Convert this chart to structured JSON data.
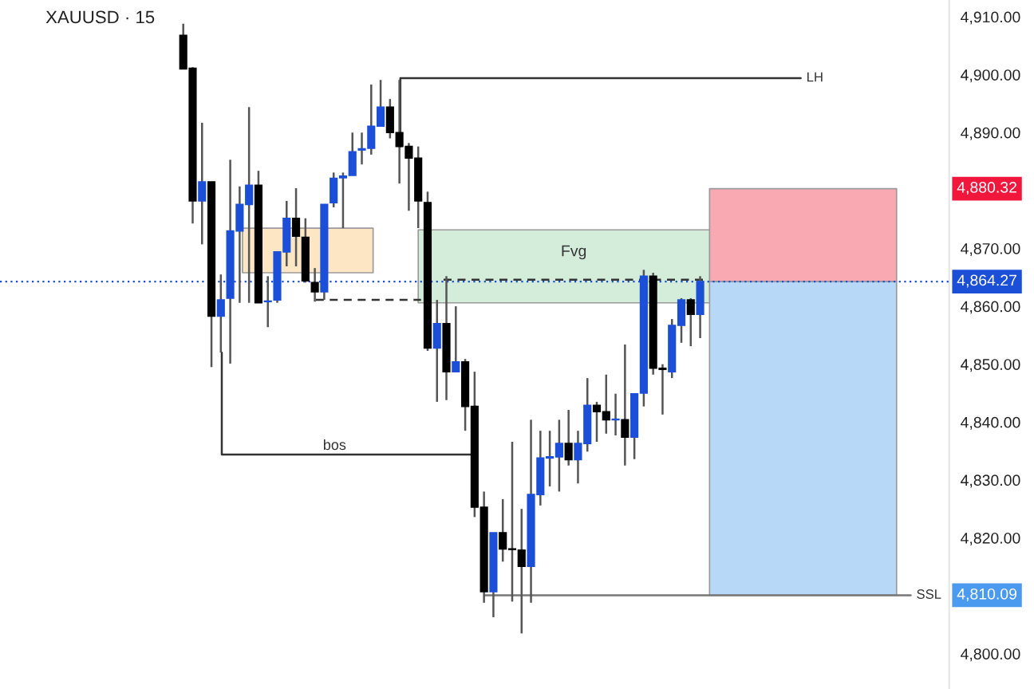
{
  "chart_data": {
    "type": "candlestick",
    "title": "XAUUSD · 15",
    "categories": [
      null,
      null,
      null,
      null,
      null,
      null,
      null,
      null,
      null,
      null,
      null,
      null,
      null,
      null,
      null,
      null,
      null,
      null,
      null,
      null,
      null,
      null,
      null,
      null,
      null,
      null,
      null,
      null,
      null,
      null,
      null,
      null,
      null,
      null,
      null,
      null,
      null,
      null,
      null,
      null,
      null,
      null,
      null,
      null,
      null,
      null,
      null,
      null,
      null,
      null,
      null,
      null,
      null,
      null,
      null,
      null,
      null,
      null,
      null,
      null,
      null,
      null,
      null,
      null,
      null,
      null,
      null,
      null,
      null,
      null,
      null,
      null,
      null,
      null,
      null,
      null,
      null,
      null,
      null,
      null,
      null,
      null,
      null,
      null,
      null,
      null,
      null,
      null,
      null,
      null,
      null,
      null,
      null,
      null,
      null,
      null,
      null,
      null,
      null,
      null,
      null
    ],
    "ohlc": [
      null,
      null,
      null,
      null,
      null,
      null,
      null,
      null,
      null,
      null,
      null,
      null,
      null,
      null,
      null,
      null,
      null,
      null,
      null,
      [
        4906.8,
        4908.8,
        4901.0,
        4901.0
      ],
      [
        4901.1,
        4901.3,
        4874.3,
        4878.2
      ],
      [
        4878.2,
        4891.7,
        4870.7,
        4881.5
      ],
      [
        4881.5,
        4881.5,
        4849.5,
        4858.3
      ],
      [
        4858.3,
        4865.5,
        4852.0,
        4861.1
      ],
      [
        4861.4,
        4885.3,
        4850.1,
        4873.0
      ],
      [
        4873.0,
        4880.7,
        4860.6,
        4877.6
      ],
      [
        4877.6,
        4894.4,
        4860.6,
        4880.9
      ],
      [
        4880.9,
        4883.4,
        4860.6,
        4860.6
      ],
      [
        4860.8,
        4865.2,
        4856.4,
        4860.9
      ],
      [
        4861.1,
        4869.4,
        4860.6,
        4869.4
      ],
      [
        4869.4,
        4878.2,
        4866.9,
        4875.2
      ],
      [
        4875.2,
        4880.4,
        4866.9,
        4872.1
      ],
      [
        4871.9,
        4875.2,
        4864.1,
        4864.4
      ],
      [
        4864.1,
        4866.6,
        4860.8,
        4862.5
      ],
      [
        4862.5,
        4877.6,
        4861.1,
        4877.6
      ],
      [
        4877.9,
        4883.1,
        4877.1,
        4882.1
      ],
      [
        4882.2,
        4883.1,
        4873.5,
        4882.5
      ],
      [
        4882.6,
        4890.0,
        4882.6,
        4886.7
      ],
      [
        4887.0,
        4890.0,
        4884.5,
        4887.2
      ],
      [
        4887.3,
        4898.3,
        4886.2,
        4891.1
      ],
      [
        4891.1,
        4899.1,
        4891.1,
        4894.4
      ],
      [
        4894.4,
        4895.8,
        4889.0,
        4890.0
      ],
      [
        4890.0,
        4899.1,
        4881.2,
        4887.6
      ],
      [
        4887.6,
        4888.2,
        4876.5,
        4885.6
      ],
      [
        4885.6,
        4887.6,
        4873.5,
        4878.2
      ],
      [
        4877.9,
        4879.8,
        4852.3,
        4852.8
      ],
      [
        4852.8,
        4861.1,
        4843.5,
        4857.0
      ],
      [
        4857.0,
        4865.2,
        4843.8,
        4848.7
      ],
      [
        4848.7,
        4860.0,
        4848.7,
        4850.4
      ],
      [
        4850.4,
        4850.9,
        4838.5,
        4842.7
      ],
      [
        4842.7,
        4848.7,
        4823.6,
        4825.3
      ],
      [
        4825.3,
        4828.0,
        4808.8,
        4810.7
      ],
      [
        4810.7,
        4820.9,
        4806.3,
        4820.9
      ],
      [
        4820.9,
        4826.7,
        4815.9,
        4818.1
      ],
      [
        4818.1,
        4836.6,
        4809.0,
        4818.0
      ],
      [
        4817.9,
        4825.0,
        4803.5,
        4815.1
      ],
      [
        4815.1,
        4840.4,
        4808.8,
        4827.5
      ],
      [
        4827.5,
        4838.5,
        4825.6,
        4833.8
      ],
      [
        4833.8,
        4838.5,
        4828.9,
        4834.0
      ],
      [
        4834.0,
        4840.4,
        4828.0,
        4836.3
      ],
      [
        4836.3,
        4842.1,
        4832.5,
        4833.5
      ],
      [
        4833.5,
        4838.5,
        4829.4,
        4836.3
      ],
      [
        4836.3,
        4847.6,
        4834.9,
        4842.9
      ],
      [
        4842.9,
        4843.5,
        4836.6,
        4841.8
      ],
      [
        4841.8,
        4848.2,
        4838.0,
        4840.4
      ],
      [
        4840.4,
        4844.9,
        4837.7,
        4840.5
      ],
      [
        4840.4,
        4853.4,
        4832.5,
        4837.4
      ],
      [
        4837.4,
        4845.0,
        4833.6,
        4844.9
      ],
      [
        4845.0,
        4866.3,
        4842.7,
        4865.2
      ],
      [
        4865.2,
        4865.8,
        4848.2,
        4849.3
      ],
      [
        4849.3,
        4850.0,
        4841.3,
        4849.1
      ],
      [
        4848.7,
        4857.8,
        4847.6,
        4856.7
      ],
      [
        4856.7,
        4861.4,
        4853.7,
        4861.1
      ],
      [
        4861.1,
        4861.4,
        4853.1,
        4858.6
      ],
      [
        4858.6,
        4865.2,
        4854.5,
        4864.27
      ],
      null,
      null,
      null,
      null,
      null,
      null,
      null,
      null,
      null,
      null,
      null,
      null,
      null,
      null,
      null,
      null,
      null,
      null,
      null,
      null,
      null,
      null,
      null,
      null,
      null,
      null
    ],
    "colors": [
      null,
      null,
      null,
      null,
      null,
      null,
      null,
      null,
      null,
      null,
      null,
      null,
      null,
      null,
      null,
      null,
      null,
      null,
      null,
      "#000000",
      "#000000",
      "#1c4fd8",
      "#000000",
      "#1c4fd8",
      "#1c4fd8",
      "#1c4fd8",
      "#1c4fd8",
      "#000000",
      "#1c4fd8",
      "#1c4fd8",
      "#1c4fd8",
      "#000000",
      "#000000",
      "#000000",
      "#1c4fd8",
      "#1c4fd8",
      "#1c4fd8",
      "#1c4fd8",
      "#1c4fd8",
      "#1c4fd8",
      "#1c4fd8",
      "#000000",
      "#000000",
      "#000000",
      "#000000",
      "#000000",
      "#1c4fd8",
      "#000000",
      "#1c4fd8",
      "#000000",
      "#000000",
      "#000000",
      "#1c4fd8",
      "#000000",
      "#000000",
      "#000000",
      "#1c4fd8",
      "#1c4fd8",
      "#1c4fd8",
      "#1c4fd8",
      "#000000",
      "#1c4fd8",
      "#1c4fd8",
      "#000000",
      "#000000",
      "#1c4fd8",
      "#000000",
      "#1c4fd8",
      "#1c4fd8",
      "#000000",
      "#000000",
      "#1c4fd8",
      "#1c4fd8",
      "#000000",
      "#1c4fd8",
      null,
      null,
      null,
      null,
      null,
      null,
      null,
      null,
      null,
      null,
      null,
      null,
      null,
      null,
      null,
      null,
      null,
      null,
      null,
      null,
      null,
      null,
      null,
      null,
      null,
      null
    ],
    "bands": [
      {
        "axis": "y",
        "from": 4865.8,
        "to": 4873.5,
        "color": "#fde6c4"
      },
      {
        "axis": "y",
        "from": 4860.6,
        "to": 4873.2,
        "label": "Fvg",
        "color": "#d4ecda"
      },
      {
        "axis": "y",
        "from": 4864.27,
        "to": 4880.32,
        "color": "#f9a9b2"
      },
      {
        "axis": "y",
        "from": 4810.09,
        "to": 4864.27,
        "color": "#b8d8f8"
      }
    ],
    "ref_lines": [
      {
        "axis": "y",
        "value": 4899.4,
        "label": "LH",
        "color": "#333333",
        "line_style": "solid"
      },
      {
        "axis": "y",
        "value": 4834.4,
        "label": "bos",
        "color": "#333333",
        "line_style": "solid"
      },
      {
        "axis": "y",
        "value": 4810.09,
        "label": "SSL",
        "color": "#777777",
        "line_style": "solid"
      },
      {
        "axis": "y",
        "value": 4861.1,
        "color": "#333333",
        "line_style": "dashed"
      },
      {
        "axis": "y",
        "value": 4864.6,
        "color": "#333333",
        "line_style": "dashed"
      },
      {
        "axis": "y",
        "value": 4864.27,
        "color": "#1c4fd8",
        "line_style": "dotted"
      }
    ],
    "annotations": [
      {
        "text": "4,880.32",
        "y": 4880.32
      },
      {
        "text": "4,864.27",
        "y": 4864.27
      },
      {
        "text": "4,810.09",
        "y": 4810.09
      }
    ],
    "ylim": [
      4793.9,
      4912.9
    ],
    "yticks": [
      {
        "value": 4800,
        "label": "4,800.00"
      },
      {
        "value": 4820,
        "label": "4,820.00"
      },
      {
        "value": 4830,
        "label": "4,830.00"
      },
      {
        "value": 4840,
        "label": "4,840.00"
      },
      {
        "value": 4850,
        "label": "4,850.00"
      },
      {
        "value": 4860,
        "label": "4,860.00"
      },
      {
        "value": 4870,
        "label": "4,870.00"
      },
      {
        "value": 4890,
        "label": "4,890.00"
      },
      {
        "value": 4900,
        "label": "4,900.00"
      },
      {
        "value": 4910,
        "label": "4,910.00"
      }
    ],
    "tick_labels": "y",
    "grid": false,
    "legend": false
  }
}
